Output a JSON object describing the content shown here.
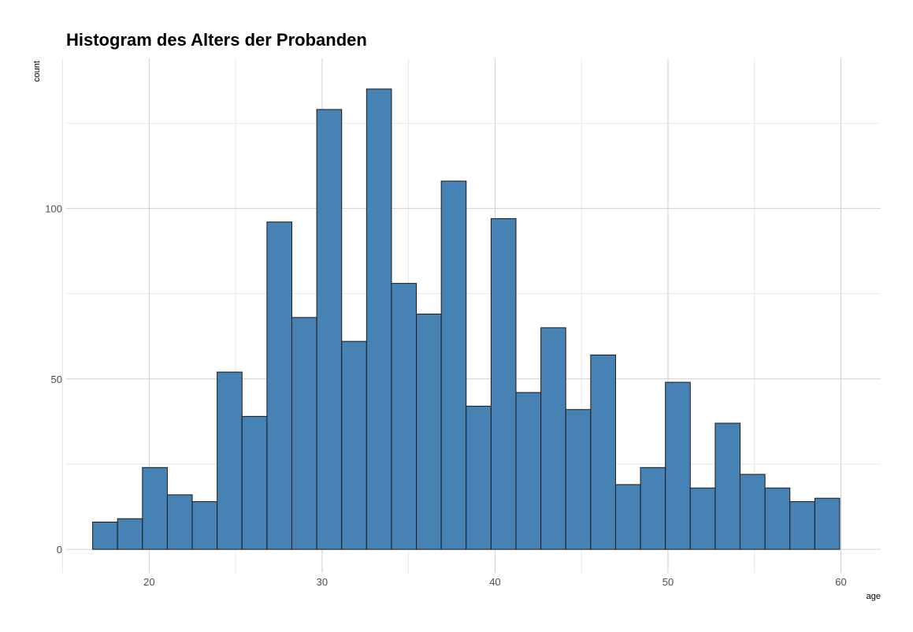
{
  "chart_data": {
    "type": "bar",
    "subtype": "histogram",
    "title": "Histogram des Alters der Probanden",
    "xlabel": "age",
    "ylabel": "count",
    "xlim": [
      15.2,
      62.3
    ],
    "ylim": [
      -6.9,
      144
    ],
    "bin_width": 1.44,
    "bins": [
      {
        "x": 17.45,
        "count": 8
      },
      {
        "x": 18.89,
        "count": 9
      },
      {
        "x": 20.33,
        "count": 24
      },
      {
        "x": 21.77,
        "count": 16
      },
      {
        "x": 23.21,
        "count": 14
      },
      {
        "x": 24.65,
        "count": 52
      },
      {
        "x": 26.09,
        "count": 39
      },
      {
        "x": 27.53,
        "count": 96
      },
      {
        "x": 28.97,
        "count": 68
      },
      {
        "x": 30.41,
        "count": 129
      },
      {
        "x": 31.85,
        "count": 61
      },
      {
        "x": 33.29,
        "count": 135
      },
      {
        "x": 34.73,
        "count": 78
      },
      {
        "x": 36.17,
        "count": 69
      },
      {
        "x": 37.61,
        "count": 108
      },
      {
        "x": 39.05,
        "count": 42
      },
      {
        "x": 40.49,
        "count": 97
      },
      {
        "x": 41.93,
        "count": 46
      },
      {
        "x": 43.37,
        "count": 65
      },
      {
        "x": 44.81,
        "count": 41
      },
      {
        "x": 46.25,
        "count": 57
      },
      {
        "x": 47.69,
        "count": 19
      },
      {
        "x": 49.13,
        "count": 24
      },
      {
        "x": 50.57,
        "count": 49
      },
      {
        "x": 52.01,
        "count": 18
      },
      {
        "x": 53.45,
        "count": 37
      },
      {
        "x": 54.89,
        "count": 22
      },
      {
        "x": 56.33,
        "count": 18
      },
      {
        "x": 57.77,
        "count": 14
      },
      {
        "x": 59.21,
        "count": 15
      }
    ],
    "x_ticks": [
      20,
      30,
      40,
      50,
      60
    ],
    "x_tick_labels": [
      "20",
      "30",
      "40",
      "50",
      "60"
    ],
    "x_minor_ticks": [
      15,
      25,
      35,
      45,
      55
    ],
    "y_ticks": [
      0,
      50,
      100
    ],
    "y_tick_labels": [
      "0",
      "50",
      "100"
    ],
    "y_minor_ticks": [
      25,
      75,
      125
    ],
    "grid": true,
    "fill_color": "#4682b4",
    "edge_color": "#1a1a1a",
    "grid_color": "#cfcfcf"
  }
}
